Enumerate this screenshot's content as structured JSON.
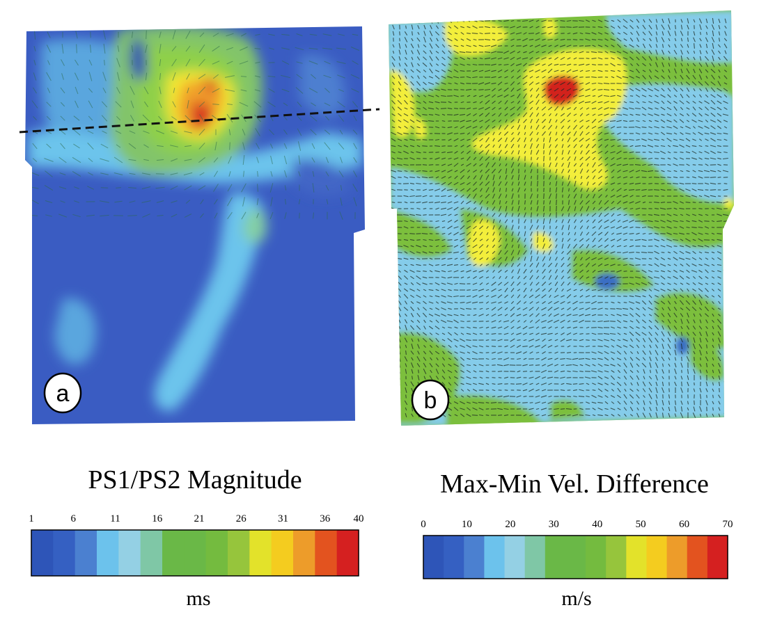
{
  "panel_a": {
    "label": "a",
    "legend": {
      "title": "PS1/PS2 Magnitude",
      "unit": "ms",
      "ticks": [
        "1",
        "6",
        "11",
        "16",
        "21",
        "26",
        "31",
        "36",
        "40"
      ],
      "range": [
        1,
        40
      ],
      "colors": [
        "#2e55b8",
        "#3560c2",
        "#4b80d0",
        "#6cc2ec",
        "#94d0e4",
        "#7fc7a6",
        "#6ab847",
        "#6ab847",
        "#74bb3f",
        "#96c53c",
        "#e3e22a",
        "#f4cc1f",
        "#ed9c2a",
        "#e3531f",
        "#d52020"
      ]
    }
  },
  "panel_b": {
    "label": "b",
    "legend": {
      "title": "Max-Min Vel. Difference",
      "unit": "m/s",
      "ticks": [
        "0",
        "10",
        "20",
        "30",
        "40",
        "50",
        "60",
        "70"
      ],
      "range": [
        0,
        70
      ],
      "colors": [
        "#2e55b8",
        "#3560c2",
        "#4b80d0",
        "#6cc2ec",
        "#94d0e4",
        "#7fc7a6",
        "#6ab847",
        "#6ab847",
        "#74bb3f",
        "#96c53c",
        "#e3e22a",
        "#f4cc1f",
        "#ed9c2a",
        "#e3531f",
        "#d52020"
      ]
    }
  },
  "colors": {
    "deep_blue": "#3a5fc4",
    "light_blue": "#6cc4ec",
    "cyan_blue": "#85ccea",
    "green": "#7bbf3d",
    "yellow": "#f3ee3a",
    "red": "#d2201f"
  }
}
